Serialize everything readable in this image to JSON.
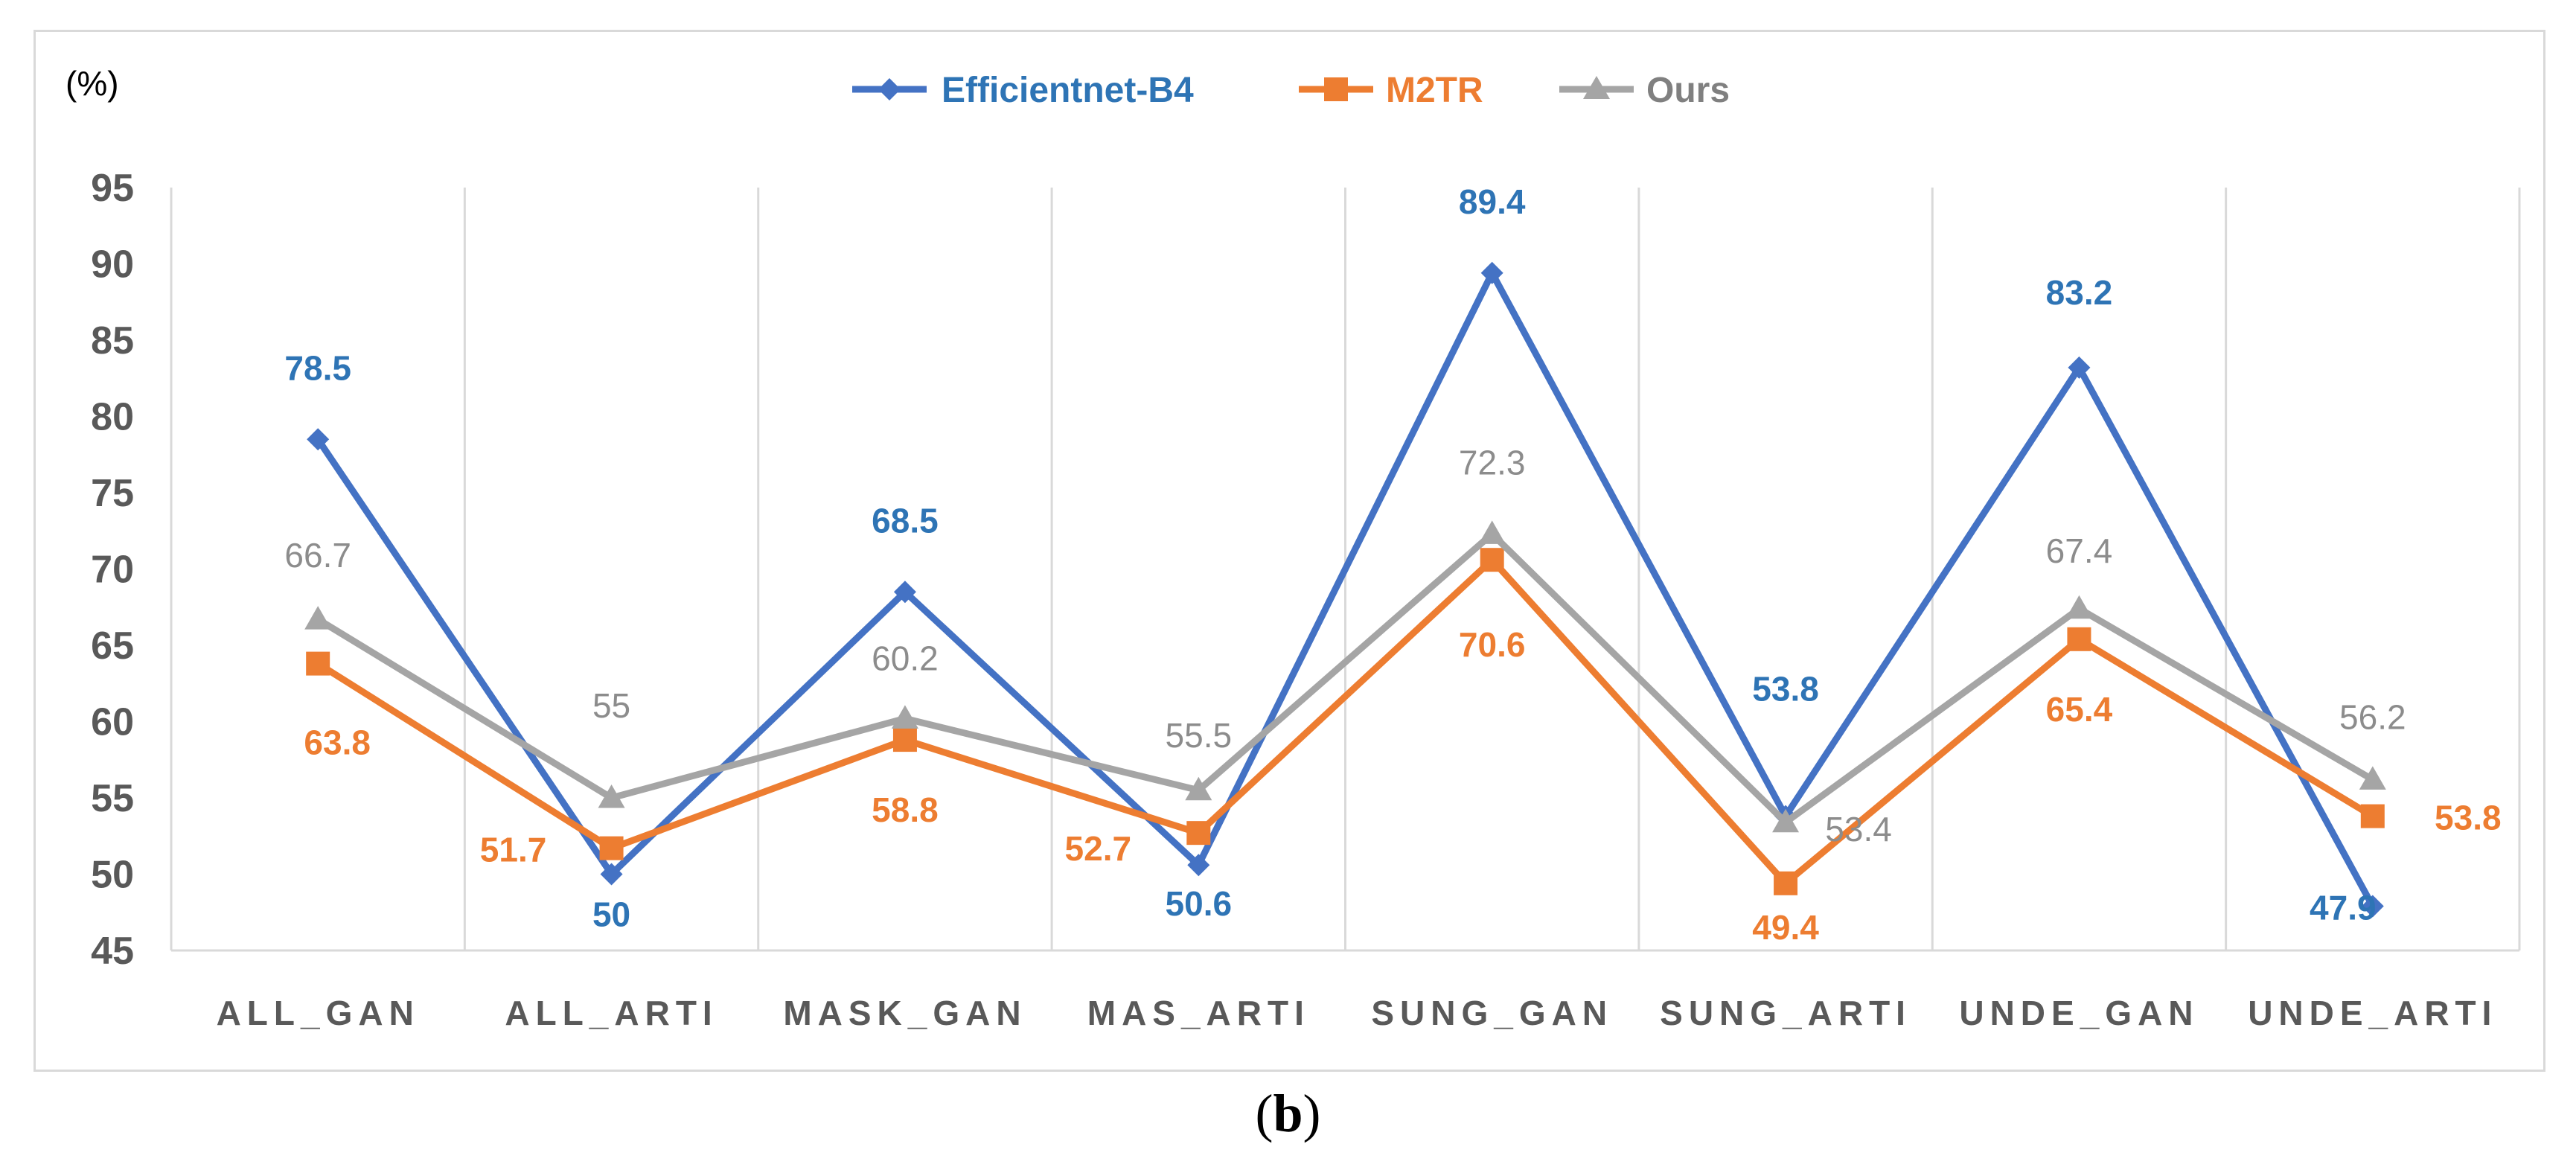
{
  "chart_data": {
    "type": "line",
    "unit_label": "(%)",
    "categories": [
      "ALL_GAN",
      "ALL_ARTI",
      "MASK_GAN",
      "MAS_ARTI",
      "SUNG_GAN",
      "SUNG_ARTI",
      "UNDE_GAN",
      "UNDE_ARTI"
    ],
    "ylim": [
      45,
      95
    ],
    "yticks": [
      45,
      50,
      55,
      60,
      65,
      70,
      75,
      80,
      85,
      90,
      95
    ],
    "grid": "vertical",
    "legend_position": "top-center",
    "series": [
      {
        "name": "Efficientnet-B4",
        "color": "#4472c4",
        "label_color": "#2e74b5",
        "marker": "diamond",
        "values": [
          78.5,
          50,
          68.5,
          50.6,
          89.4,
          53.8,
          83.2,
          47.9
        ]
      },
      {
        "name": "M2TR",
        "color": "#ed7d31",
        "label_color": "#ed7d31",
        "marker": "square",
        "values": [
          63.8,
          51.7,
          58.8,
          52.7,
          70.6,
          49.4,
          65.4,
          53.8
        ]
      },
      {
        "name": "Ours",
        "color": "#a5a5a5",
        "label_color": "#8c8c8c",
        "marker": "triangle",
        "values": [
          66.7,
          55,
          60.2,
          55.5,
          72.3,
          53.4,
          67.4,
          56.2
        ]
      }
    ]
  },
  "caption": {
    "open": "(",
    "letter": "b",
    "close": ")"
  }
}
